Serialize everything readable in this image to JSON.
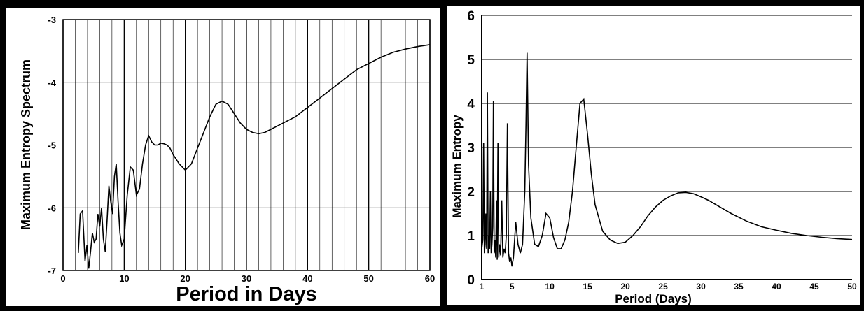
{
  "chart_data": [
    {
      "type": "line",
      "title": "",
      "xlabel": "Period in Days",
      "ylabel": "Maximum Entropy Spectrum",
      "xlim": [
        0,
        60
      ],
      "ylim": [
        -7,
        -3
      ],
      "grid": true,
      "x_ticks": [
        0,
        10,
        20,
        30,
        40,
        50,
        60
      ],
      "y_ticks": [
        -7,
        -6,
        -5,
        -4,
        -3
      ],
      "series": [
        {
          "x": [
            2.5,
            2.8,
            3.2,
            3.6,
            3.9,
            4.2,
            4.5,
            4.8,
            5.1,
            5.4,
            5.7,
            6.0,
            6.3,
            6.6,
            6.9,
            7.2,
            7.5,
            7.8,
            8.1,
            8.4,
            8.7,
            9.0,
            9.3,
            9.6,
            10.0,
            10.5,
            11.0,
            11.5,
            12.0,
            12.5,
            13.0,
            13.5,
            14.0,
            14.5,
            15.0,
            15.5,
            16.0,
            16.5,
            17.0,
            17.5,
            18.0,
            19.0,
            20.0,
            21.0,
            22.0,
            23.0,
            24.0,
            25.0,
            26.0,
            27.0,
            28.0,
            29.0,
            30.0,
            31.0,
            32.0,
            33.0,
            34.0,
            35.0,
            36.0,
            38.0,
            40.0,
            42.0,
            44.0,
            46.0,
            48.0,
            50.0,
            52.0,
            54.0,
            56.0,
            58.0,
            60.0
          ],
          "values": [
            -6.72,
            -6.1,
            -6.05,
            -6.85,
            -6.6,
            -6.97,
            -6.7,
            -6.4,
            -6.55,
            -6.5,
            -6.1,
            -6.3,
            -6.0,
            -6.5,
            -6.7,
            -6.2,
            -5.65,
            -5.9,
            -6.1,
            -5.5,
            -5.3,
            -5.9,
            -6.4,
            -6.6,
            -6.5,
            -5.8,
            -5.35,
            -5.4,
            -5.8,
            -5.7,
            -5.3,
            -5.0,
            -4.85,
            -4.95,
            -5.0,
            -5.0,
            -4.97,
            -4.98,
            -5.0,
            -5.05,
            -5.15,
            -5.3,
            -5.4,
            -5.3,
            -5.05,
            -4.8,
            -4.55,
            -4.35,
            -4.3,
            -4.35,
            -4.5,
            -4.65,
            -4.75,
            -4.8,
            -4.82,
            -4.8,
            -4.75,
            -4.7,
            -4.65,
            -4.55,
            -4.4,
            -4.25,
            -4.1,
            -3.95,
            -3.8,
            -3.7,
            -3.6,
            -3.52,
            -3.47,
            -3.43,
            -3.4
          ]
        }
      ]
    },
    {
      "type": "line",
      "title": "",
      "xlabel": "Period (Days)",
      "ylabel": "Maximum Entropy",
      "xlim": [
        1,
        50
      ],
      "ylim": [
        0,
        6
      ],
      "grid": true,
      "x_ticks": [
        1,
        5,
        10,
        15,
        20,
        25,
        30,
        35,
        40,
        45,
        50
      ],
      "y_ticks": [
        0,
        1,
        2,
        3,
        4,
        5,
        6
      ],
      "series": [
        {
          "x": [
            1.0,
            1.15,
            1.25,
            1.35,
            1.45,
            1.55,
            1.65,
            1.75,
            1.85,
            1.95,
            2.05,
            2.15,
            2.25,
            2.35,
            2.45,
            2.55,
            2.65,
            2.75,
            2.85,
            2.95,
            3.05,
            3.15,
            3.25,
            3.35,
            3.5,
            3.65,
            3.8,
            3.95,
            4.1,
            4.25,
            4.4,
            4.55,
            4.7,
            4.85,
            5.0,
            5.2,
            5.5,
            5.8,
            6.1,
            6.4,
            6.7,
            6.85,
            7.0,
            7.2,
            7.5,
            8.0,
            8.5,
            9.0,
            9.5,
            10.0,
            10.5,
            11.0,
            11.5,
            12.0,
            12.5,
            13.0,
            13.5,
            14.0,
            14.5,
            15.0,
            15.5,
            16.0,
            17.0,
            18.0,
            19.0,
            20.0,
            21.0,
            22.0,
            23.0,
            24.0,
            25.0,
            26.0,
            27.0,
            28.0,
            29.0,
            30.0,
            31.0,
            32.0,
            34.0,
            36.0,
            38.0,
            40.0,
            42.0,
            44.0,
            46.0,
            48.0,
            50.0
          ],
          "values": [
            0.7,
            0.9,
            3.1,
            0.6,
            0.8,
            1.5,
            0.7,
            4.25,
            0.6,
            1.0,
            0.7,
            2.0,
            0.6,
            0.8,
            1.2,
            4.05,
            0.6,
            0.9,
            0.5,
            1.8,
            0.45,
            3.1,
            0.5,
            0.8,
            0.55,
            1.8,
            0.5,
            0.7,
            0.6,
            1.0,
            3.55,
            0.6,
            0.4,
            0.5,
            0.3,
            0.5,
            1.3,
            0.8,
            0.6,
            0.8,
            2.0,
            3.5,
            5.15,
            2.6,
            1.4,
            0.8,
            0.75,
            1.0,
            1.5,
            1.4,
            0.95,
            0.7,
            0.7,
            0.9,
            1.3,
            2.0,
            3.0,
            4.0,
            4.1,
            3.3,
            2.4,
            1.7,
            1.1,
            0.9,
            0.82,
            0.85,
            1.0,
            1.2,
            1.45,
            1.65,
            1.8,
            1.9,
            1.97,
            1.98,
            1.95,
            1.88,
            1.8,
            1.7,
            1.5,
            1.33,
            1.2,
            1.12,
            1.05,
            1.0,
            0.96,
            0.93,
            0.91
          ]
        }
      ]
    }
  ]
}
